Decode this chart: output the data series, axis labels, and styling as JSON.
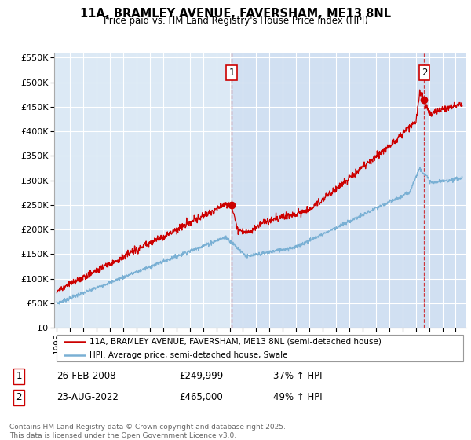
{
  "title": "11A, BRAMLEY AVENUE, FAVERSHAM, ME13 8NL",
  "subtitle": "Price paid vs. HM Land Registry's House Price Index (HPI)",
  "legend_line1": "11A, BRAMLEY AVENUE, FAVERSHAM, ME13 8NL (semi-detached house)",
  "legend_line2": "HPI: Average price, semi-detached house, Swale",
  "footnote": "Contains HM Land Registry data © Crown copyright and database right 2025.\nThis data is licensed under the Open Government Licence v3.0.",
  "sale1_date": "26-FEB-2008",
  "sale1_price": "£249,999",
  "sale1_hpi": "37% ↑ HPI",
  "sale2_date": "23-AUG-2022",
  "sale2_price": "£465,000",
  "sale2_hpi": "49% ↑ HPI",
  "property_color": "#cc0000",
  "hpi_color": "#7ab0d4",
  "bg_color": "#dce9f5",
  "bg_shaded_color": "#ccdff0",
  "ylim": [
    0,
    560000
  ],
  "yticks": [
    0,
    50000,
    100000,
    150000,
    200000,
    250000,
    300000,
    350000,
    400000,
    450000,
    500000,
    550000
  ],
  "sale1_x": 2008.15,
  "sale1_y": 249999,
  "sale2_x": 2022.64,
  "sale2_y": 465000,
  "xmin": 1994.8,
  "xmax": 2025.8
}
